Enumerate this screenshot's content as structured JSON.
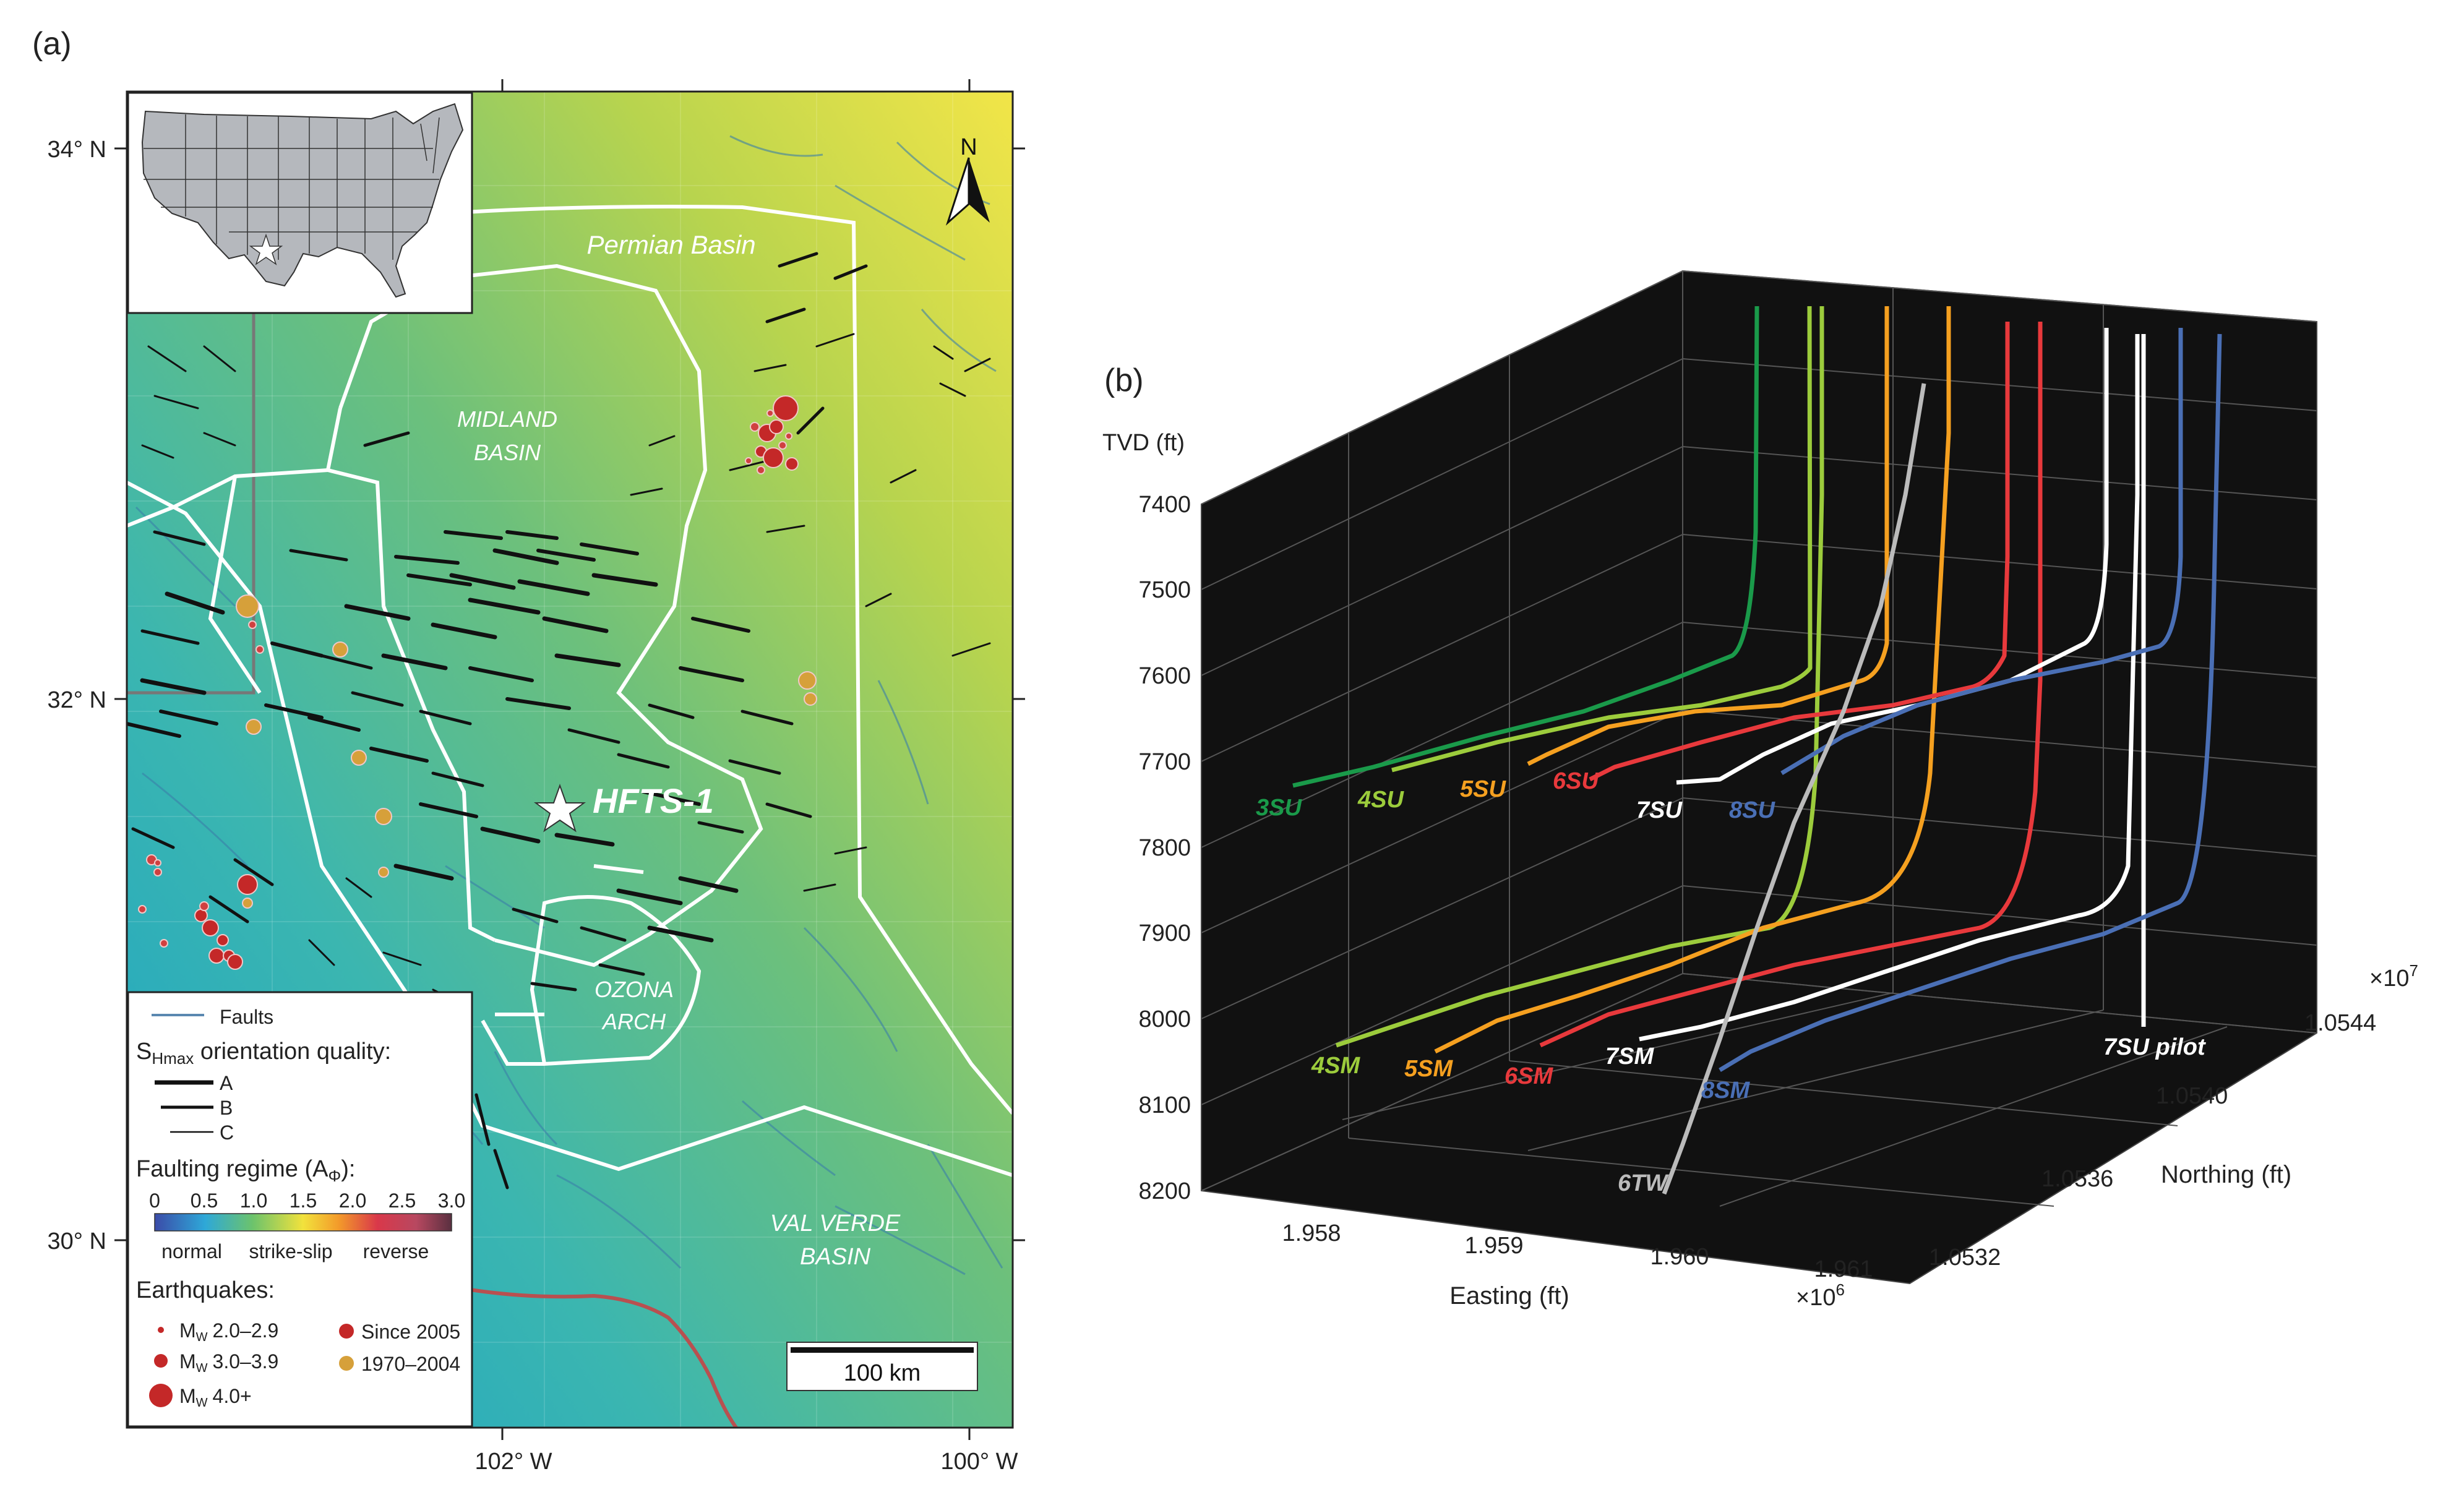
{
  "panel_a": {
    "label": "(a)",
    "lat_labels": [
      "34° N",
      "32° N",
      "30° N"
    ],
    "lon_labels": [
      "102° W",
      "100° W"
    ],
    "north_label": "N",
    "regions": {
      "permian": "Permian Basin",
      "midland_1": "MIDLAND",
      "midland_2": "BASIN",
      "ozona_1": "OZONA",
      "ozona_2": "ARCH",
      "valverde_1": "VAL VERDE",
      "valverde_2": "BASIN"
    },
    "site": "HFTS-1",
    "scale_label": "100 km",
    "legend": {
      "faults": "Faults",
      "shmax_prefix": "S",
      "shmax_sub": "Hmax",
      "shmax_suffix": " orientation quality:",
      "quality": [
        "A",
        "B",
        "C"
      ],
      "regime_prefix": "Faulting regime (A",
      "regime_sub": "Φ",
      "regime_suffix": "):",
      "ticks": [
        "0",
        "0.5",
        "1.0",
        "1.5",
        "2.0",
        "2.5",
        "3.0"
      ],
      "regime_names": [
        "normal",
        "strike-slip",
        "reverse"
      ],
      "eq_title": "Earthquakes:",
      "mag_prefix": "M",
      "mag_sub": "W",
      "mags": [
        "2.0–2.9",
        "3.0–3.9",
        "4.0+"
      ],
      "periods": [
        "Since 2005",
        "1970–2004"
      ]
    }
  },
  "panel_b": {
    "label": "(b)",
    "tvd_axis_label": "TVD (ft)",
    "easting_label": "Easting (ft)",
    "northing_label": "Northing (ft)",
    "easting_exp": "×10",
    "easting_exp_sup": "6",
    "northing_exp": "×10",
    "northing_exp_sup": "7"
  },
  "chart_data": {
    "type": "line",
    "title": "",
    "zlabel": "TVD (ft)",
    "xlabel": "Easting (ft)",
    "ylabel": "Northing (ft)",
    "z_ticks": [
      "7400",
      "7500",
      "7600",
      "7700",
      "7800",
      "7900",
      "8000",
      "8100",
      "8200"
    ],
    "z_range": [
      7400,
      8200
    ],
    "x_ticks": [
      "1.958",
      "1.959",
      "1.960",
      "1.961"
    ],
    "x_scale": "×10^6",
    "y_ticks": [
      "1.0532",
      "1.0536",
      "1.0540",
      "1.0544"
    ],
    "y_scale": "×10^7",
    "series": [
      {
        "name": "3SU",
        "color": "#1a9a4a",
        "landing_tvd": 7720
      },
      {
        "name": "4SU",
        "color": "#9ccc3c",
        "landing_tvd": 7715
      },
      {
        "name": "5SU",
        "color": "#f5a020",
        "landing_tvd": 7705
      },
      {
        "name": "6SU",
        "color": "#e8393c",
        "landing_tvd": 7700
      },
      {
        "name": "7SU",
        "color": "#ffffff",
        "landing_tvd": 7695
      },
      {
        "name": "8SU",
        "color": "#4a6fb5",
        "landing_tvd": 7685
      },
      {
        "name": "4SM",
        "color": "#9ccc3c",
        "landing_tvd": 8025
      },
      {
        "name": "5SM",
        "color": "#f5a020",
        "landing_tvd": 8035
      },
      {
        "name": "6SM",
        "color": "#e8393c",
        "landing_tvd": 8040
      },
      {
        "name": "7SM",
        "color": "#ffffff",
        "landing_tvd": 8030
      },
      {
        "name": "8SM",
        "color": "#4a6fb5",
        "landing_tvd": 8040
      },
      {
        "name": "6TW",
        "color": "#bbbbbb",
        "landing_tvd": 8200
      },
      {
        "name": "7SU pilot",
        "color": "#ffffff",
        "landing_tvd": 8000
      }
    ]
  }
}
